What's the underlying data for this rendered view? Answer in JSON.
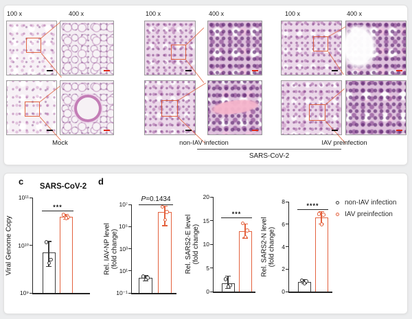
{
  "figure": {
    "panel_a": {
      "groups": [
        {
          "mag_labels": [
            "100 x",
            "400 x"
          ],
          "label": "Mock"
        },
        {
          "mag_labels": [
            "100 x",
            "400 x"
          ],
          "label": "non-IAV infection"
        },
        {
          "mag_labels": [
            "100 x",
            "400 x"
          ],
          "label": "IAV preinfection"
        }
      ],
      "bracket_label": "SARS-CoV-2"
    },
    "panel_c_letter": "c",
    "panel_d_letter": "d",
    "legend": {
      "items": [
        {
          "label": "non-IAV infection",
          "color": "#3a3a3a"
        },
        {
          "label": "IAV preinfection",
          "color": "#E3603C"
        }
      ]
    }
  },
  "colors": {
    "dark": "#3a3a3a",
    "accent_orange": "#E3603C",
    "callout_orange": "#DE552D",
    "scalebar_red": "#DE2A1C"
  },
  "chart_data": [
    {
      "id": "c",
      "type": "bar",
      "title": "SARS-CoV-2",
      "ylabel": "Viral Genome Copy",
      "yscale": "log",
      "ylim": [
        1000000000.0,
        100000000000.0
      ],
      "yticks": [
        "10⁹",
        "10¹⁰",
        "10¹¹"
      ],
      "categories": [
        "non-IAV infection",
        "IAV preinfection"
      ],
      "values": [
        7000000000.0,
        39000000000.0
      ],
      "points": [
        [
          11500000000.0,
          5000000000.0,
          4200000000.0
        ],
        [
          43500000000.0,
          39000000000.0,
          37000000000.0
        ]
      ],
      "errors": [
        [
          3600000000.0,
          12000000000.0
        ],
        [
          35000000000.0,
          44000000000.0
        ]
      ],
      "significance": "***"
    },
    {
      "id": "d1",
      "type": "bar",
      "ylabel": "Rel. IAV-NP level",
      "ylabel2": "(fold change)",
      "yscale": "log",
      "ylim": [
        0.1,
        10000000.0
      ],
      "yticks": [
        "10⁻¹",
        "10¹",
        "10³",
        "10⁵",
        "10⁷"
      ],
      "categories": [
        "non-IAV infection",
        "IAV preinfection"
      ],
      "values": [
        2.2,
        2000000.0
      ],
      "points": [
        [
          3.0,
          2.3,
          1.6
        ],
        [
          6000000.0,
          2000000.0,
          400000.0
        ]
      ],
      "errors": [
        [
          1.2,
          3.6
        ],
        [
          120000.0,
          7000000.0
        ]
      ],
      "significance": "P=0.1434"
    },
    {
      "id": "d2",
      "type": "bar",
      "ylabel": "Rel. SARS2-E level",
      "ylabel2": "(fold change)",
      "yscale": "linear",
      "ylim": [
        0,
        20
      ],
      "yticks": [
        "0",
        "5",
        "10",
        "15",
        "20"
      ],
      "categories": [
        "non-IAV infection",
        "IAV preinfection"
      ],
      "values": [
        1.7,
        12.8
      ],
      "points": [
        [
          2.6,
          1.3,
          1.0
        ],
        [
          14.4,
          12.9,
          11.5
        ]
      ],
      "errors": [
        [
          0.6,
          3.3
        ],
        [
          11.3,
          14.3
        ]
      ],
      "significance": "***"
    },
    {
      "id": "d3",
      "type": "bar",
      "ylabel": "Rel. SARS2-N level",
      "ylabel2": "(fold change)",
      "yscale": "linear",
      "ylim": [
        0,
        8
      ],
      "yticks": [
        "0",
        "2",
        "4",
        "6",
        "8"
      ],
      "categories": [
        "non-IAV infection",
        "IAV preinfection"
      ],
      "values": [
        0.85,
        6.6
      ],
      "points": [
        [
          1.0,
          0.9,
          0.75
        ],
        [
          6.9,
          6.85,
          6.0
        ]
      ],
      "errors": [
        [
          0.7,
          1.05
        ],
        [
          6.0,
          7.1
        ]
      ],
      "significance": "****"
    }
  ]
}
